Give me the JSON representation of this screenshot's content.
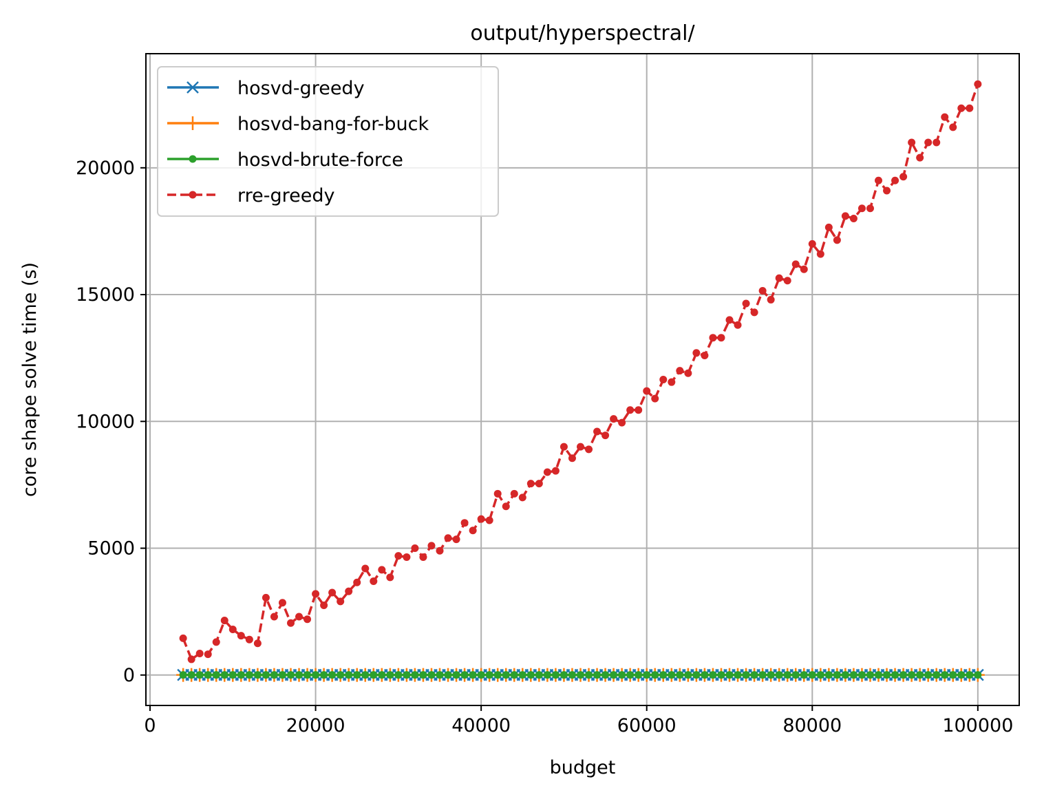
{
  "chart_data": {
    "type": "line",
    "title": "output/hyperspectral/",
    "xlabel": "budget",
    "ylabel": "core shape solve time (s)",
    "xlim": [
      -500,
      105000
    ],
    "ylim": [
      -1200,
      24500
    ],
    "xticks": [
      0,
      20000,
      40000,
      60000,
      80000,
      100000
    ],
    "yticks": [
      0,
      5000,
      10000,
      15000,
      20000
    ],
    "grid": true,
    "legend_position": "top-left",
    "x": [
      4000,
      5000,
      6000,
      7000,
      8000,
      9000,
      10000,
      11000,
      12000,
      13000,
      14000,
      15000,
      16000,
      17000,
      18000,
      19000,
      20000,
      21000,
      22000,
      23000,
      24000,
      25000,
      26000,
      27000,
      28000,
      29000,
      30000,
      31000,
      32000,
      33000,
      34000,
      35000,
      36000,
      37000,
      38000,
      39000,
      40000,
      41000,
      42000,
      43000,
      44000,
      45000,
      46000,
      47000,
      48000,
      49000,
      50000,
      51000,
      52000,
      53000,
      54000,
      55000,
      56000,
      57000,
      58000,
      59000,
      60000,
      61000,
      62000,
      63000,
      64000,
      65000,
      66000,
      67000,
      68000,
      69000,
      70000,
      71000,
      72000,
      73000,
      74000,
      75000,
      76000,
      77000,
      78000,
      79000,
      80000,
      81000,
      82000,
      83000,
      84000,
      85000,
      86000,
      87000,
      88000,
      89000,
      90000,
      91000,
      92000,
      93000,
      94000,
      95000,
      96000,
      97000,
      98000,
      99000,
      100000
    ],
    "series": [
      {
        "name": "hosvd-greedy",
        "color": "#1f77b4",
        "marker": "x",
        "linestyle": "solid",
        "values": [
          4,
          4,
          4,
          4,
          4,
          4,
          4,
          4,
          4,
          4,
          4,
          4,
          4,
          4,
          4,
          4,
          4,
          4,
          4,
          4,
          4,
          4,
          4,
          4,
          4,
          4,
          4,
          4,
          4,
          4,
          4,
          4,
          4,
          4,
          4,
          4,
          4,
          4,
          4,
          4,
          4,
          4,
          4,
          4,
          4,
          4,
          4,
          4,
          4,
          4,
          4,
          4,
          4,
          4,
          4,
          4,
          4,
          4,
          4,
          4,
          4,
          4,
          4,
          4,
          4,
          4,
          4,
          4,
          4,
          4,
          4,
          4,
          4,
          4,
          4,
          4,
          4,
          4,
          4,
          4,
          4,
          4,
          4,
          4,
          4,
          4,
          4,
          4,
          4,
          4,
          4,
          4,
          4,
          4,
          4,
          4,
          4
        ]
      },
      {
        "name": "hosvd-bang-for-buck",
        "color": "#ff7f0e",
        "marker": "+",
        "linestyle": "solid",
        "values": [
          3,
          3,
          3,
          3,
          3,
          3,
          3,
          3,
          3,
          3,
          3,
          3,
          3,
          3,
          3,
          3,
          3,
          3,
          3,
          3,
          3,
          3,
          3,
          3,
          3,
          3,
          3,
          3,
          3,
          3,
          3,
          3,
          3,
          3,
          3,
          3,
          3,
          3,
          3,
          3,
          3,
          3,
          3,
          3,
          3,
          3,
          3,
          3,
          3,
          3,
          3,
          3,
          3,
          3,
          3,
          3,
          3,
          3,
          3,
          3,
          3,
          3,
          3,
          3,
          3,
          3,
          3,
          3,
          3,
          3,
          3,
          3,
          3,
          3,
          3,
          3,
          3,
          3,
          3,
          3,
          3,
          3,
          3,
          3,
          3,
          3,
          3,
          3,
          3,
          3,
          3,
          3,
          3,
          3,
          3,
          3,
          3
        ]
      },
      {
        "name": "hosvd-brute-force",
        "color": "#2ca02c",
        "marker": "dot",
        "linestyle": "solid",
        "values": [
          5,
          5,
          5,
          5,
          5,
          5,
          5,
          5,
          5,
          5,
          5,
          5,
          5,
          5,
          5,
          5,
          5,
          5,
          5,
          5,
          5,
          5,
          5,
          5,
          5,
          5,
          5,
          5,
          5,
          5,
          5,
          5,
          5,
          5,
          5,
          5,
          5,
          5,
          5,
          5,
          5,
          5,
          5,
          5,
          5,
          5,
          5,
          5,
          5,
          5,
          5,
          5,
          5,
          5,
          5,
          5,
          5,
          5,
          5,
          5,
          5,
          5,
          5,
          5,
          5,
          5,
          5,
          5,
          5,
          5,
          5,
          5,
          5,
          5,
          5,
          5,
          5,
          5,
          5,
          5,
          5,
          5,
          5,
          5,
          5,
          5,
          5,
          5,
          5,
          5,
          5,
          5,
          5,
          5,
          5,
          5,
          5
        ]
      },
      {
        "name": "rre-greedy",
        "color": "#d62728",
        "marker": "dot",
        "linestyle": "dashed",
        "values": [
          1450,
          620,
          850,
          820,
          1300,
          2150,
          1800,
          1550,
          1400,
          1250,
          3050,
          2300,
          2850,
          2050,
          2300,
          2200,
          3200,
          2750,
          3250,
          2900,
          3300,
          3650,
          4200,
          3700,
          4150,
          3850,
          4700,
          4650,
          5000,
          4650,
          5100,
          4900,
          5400,
          5350,
          6000,
          5700,
          6150,
          6100,
          7150,
          6650,
          7150,
          7000,
          7550,
          7550,
          8000,
          8050,
          9000,
          8550,
          9000,
          8900,
          9600,
          9450,
          10100,
          9950,
          10450,
          10450,
          11200,
          10900,
          11650,
          11550,
          12000,
          11900,
          12700,
          12600,
          13300,
          13300,
          14000,
          13800,
          14650,
          14300,
          15150,
          14800,
          15650,
          15550,
          16200,
          16000,
          17000,
          16600,
          17650,
          17150,
          18100,
          18000,
          18400,
          18400,
          19500,
          19100,
          19500,
          19650,
          21000,
          20400,
          21000,
          21000,
          22000,
          21600,
          22350,
          22350,
          23300
        ]
      }
    ]
  }
}
